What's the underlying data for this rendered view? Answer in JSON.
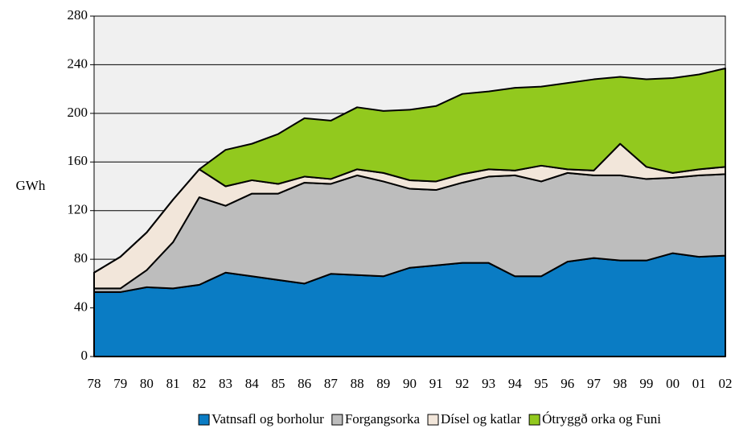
{
  "chart_data": {
    "type": "stacked_area",
    "y_label": "GWh",
    "categories": [
      "78",
      "79",
      "80",
      "81",
      "82",
      "83",
      "84",
      "85",
      "86",
      "87",
      "88",
      "89",
      "90",
      "91",
      "92",
      "93",
      "94",
      "95",
      "96",
      "97",
      "98",
      "99",
      "00",
      "01",
      "02"
    ],
    "series": [
      {
        "name": "Vatnsafl og borholur",
        "color": "#0a7cc4",
        "values": [
          53,
          53,
          57,
          56,
          59,
          69,
          66,
          63,
          60,
          68,
          67,
          66,
          73,
          75,
          77,
          77,
          66,
          66,
          78,
          81,
          79,
          79,
          85,
          82,
          83
        ]
      },
      {
        "name": "Forgangsorka",
        "color": "#bdbdbd",
        "values": [
          3,
          3,
          14,
          38,
          72,
          55,
          68,
          71,
          83,
          74,
          82,
          78,
          65,
          62,
          66,
          71,
          83,
          78,
          73,
          68,
          70,
          67,
          62,
          67,
          67
        ]
      },
      {
        "name": "Dísel og katlar",
        "color": "#f2e6da",
        "values": [
          13,
          26,
          31,
          35,
          23,
          16,
          11,
          8,
          5,
          4,
          5,
          7,
          7,
          7,
          7,
          6,
          4,
          13,
          3,
          4,
          26,
          10,
          4,
          5,
          6
        ]
      },
      {
        "name": "Ótryggð  orka og Funi",
        "color": "#92c91e",
        "values": [
          0,
          0,
          0,
          0,
          0,
          30,
          30,
          41,
          48,
          48,
          51,
          51,
          58,
          62,
          66,
          64,
          68,
          65,
          71,
          75,
          55,
          72,
          78,
          78,
          81
        ]
      }
    ],
    "ylim": [
      0,
      280
    ],
    "yticks": [
      0,
      40,
      80,
      120,
      160,
      200,
      240,
      280
    ],
    "grid": true
  }
}
